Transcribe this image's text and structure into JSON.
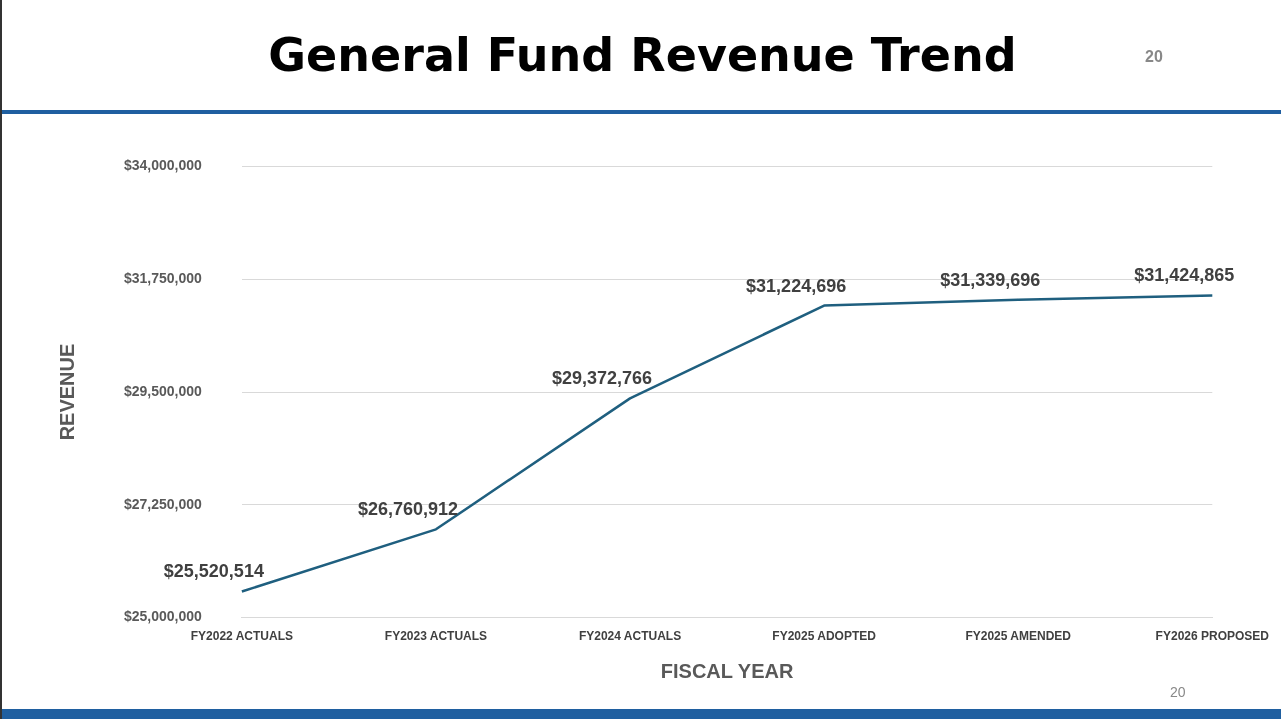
{
  "chart_data": {
    "type": "line",
    "title": "General Fund Revenue Trend",
    "xlabel": "FISCAL YEAR",
    "ylabel": "REVENUE",
    "categories": [
      "FY2022 ACTUALS",
      "FY2023 ACTUALS",
      "FY2024 ACTUALS",
      "FY2025 ADOPTED",
      "FY2025 AMENDED",
      "FY2026 PROPOSED"
    ],
    "series": [
      {
        "color": "#1f5f7f",
        "values": [
          25520514,
          26760912,
          29372766,
          31224696,
          31339696,
          31424865
        ],
        "value_labels": [
          "$25,520,514",
          "$26,760,912",
          "$29,372,766",
          "$31,224,696",
          "$31,339,696",
          "$31,424,865"
        ]
      }
    ],
    "ylim": [
      25000000,
      34000000
    ],
    "yticks": [
      {
        "value": 25000000,
        "label": "$25,000,000"
      },
      {
        "value": 27250000,
        "label": "$27,250,000"
      },
      {
        "value": 29500000,
        "label": "$29,500,000"
      },
      {
        "value": 31750000,
        "label": "$31,750,000"
      },
      {
        "value": 34000000,
        "label": "$34,000,000"
      }
    ],
    "grid": "y",
    "legend": false,
    "marker": "none",
    "line_style": "solid",
    "annotations": [
      "20",
      "20"
    ]
  }
}
